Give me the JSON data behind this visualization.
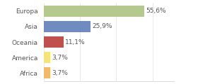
{
  "categories": [
    "Europa",
    "Asia",
    "Oceania",
    "America",
    "Africa"
  ],
  "values": [
    55.6,
    25.9,
    11.1,
    3.7,
    3.7
  ],
  "labels": [
    "55,6%",
    "25,9%",
    "11,1%",
    "3,7%",
    "3,7%"
  ],
  "bar_colors": [
    "#b5c98e",
    "#6f8bbf",
    "#c0504d",
    "#f5e47a",
    "#f0b96b"
  ],
  "background_color": "#ffffff",
  "label_fontsize": 6.5,
  "category_fontsize": 6.5,
  "xlim": [
    0,
    72
  ],
  "bar_height": 0.72,
  "figsize": [
    2.8,
    1.2
  ],
  "dpi": 100
}
